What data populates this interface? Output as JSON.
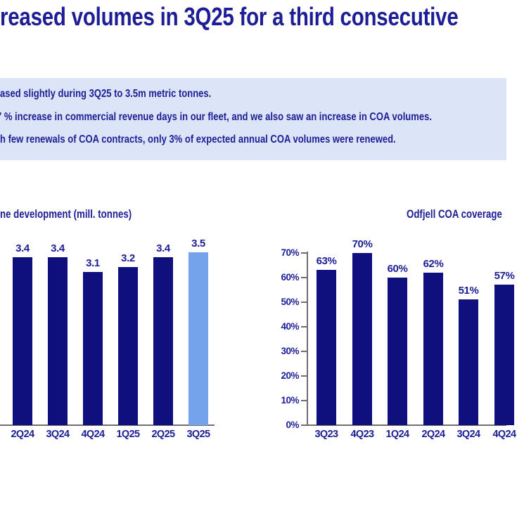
{
  "title": "reased volumes in 3Q25 for a third consecutive",
  "info_box": {
    "bullets": [
      "ased slightly during 3Q25 to 3.5m metric tonnes.",
      "7 % increase in commercial revenue days in our fleet, and we also saw an increase in COA volumes.",
      "h few renewals of COA contracts, only 3% of expected annual COA volumes were renewed."
    ]
  },
  "colors": {
    "navy": "#1d1d96",
    "bar": "#0f0f7d",
    "highlight": "#74a3ec",
    "box_bg": "#dce5f7",
    "axis": "#6f6f6f"
  },
  "chart_data": [
    {
      "type": "bar",
      "title": "ne development (mill. tonnes)",
      "categories": [
        "2Q24",
        "3Q24",
        "4Q24",
        "1Q25",
        "2Q25",
        "3Q25"
      ],
      "values": [
        3.4,
        3.4,
        3.1,
        3.2,
        3.4,
        3.5
      ],
      "bar_labels": [
        "3.4",
        "3.4",
        "3.1",
        "3.2",
        "3.4",
        "3.5"
      ],
      "highlight_index": 5,
      "xlabel": "",
      "ylabel": "",
      "ylim": [
        0,
        4
      ],
      "grid": false,
      "legend": false,
      "yaxis_visible": false
    },
    {
      "type": "bar",
      "title": "Odfjell COA coverage",
      "categories": [
        "3Q23",
        "4Q23",
        "1Q24",
        "2Q24",
        "3Q24",
        "4Q24"
      ],
      "values": [
        63,
        70,
        60,
        62,
        51,
        57
      ],
      "bar_labels": [
        "63%",
        "70%",
        "60%",
        "62%",
        "51%",
        "57%"
      ],
      "yticks": [
        "70%",
        "60%",
        "50%",
        "40%",
        "30%",
        "20%",
        "10%",
        "0%"
      ],
      "xlabel": "",
      "ylabel": "",
      "ylim": [
        0,
        70
      ],
      "grid": false,
      "legend": false,
      "yaxis_visible": true
    }
  ]
}
